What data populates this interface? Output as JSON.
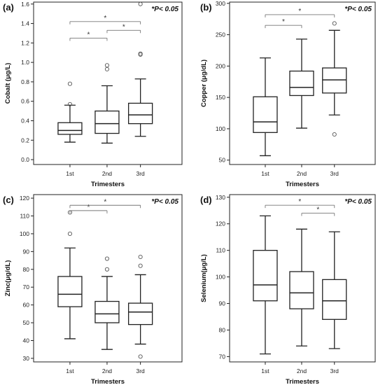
{
  "chart_data": [
    {
      "type": "box",
      "panel_label": "(a)",
      "significance_note": "*P< 0.05",
      "xlabel": "Trimesters",
      "ylabel": "Cobalt (μg/L)",
      "categories": [
        "1st",
        "2nd",
        "3rd"
      ],
      "ylim": [
        -0.05,
        1.62
      ],
      "yticks": [
        0.0,
        0.2,
        0.4,
        0.6,
        0.8,
        1.0,
        1.2,
        1.4,
        1.6
      ],
      "tick_format": "1dp",
      "boxes": [
        {
          "whisker_low": 0.18,
          "q1": 0.26,
          "median": 0.3,
          "q3": 0.38,
          "whisker_high": 0.56,
          "outliers": [
            0.57,
            0.78
          ]
        },
        {
          "whisker_low": 0.17,
          "q1": 0.27,
          "median": 0.37,
          "q3": 0.5,
          "whisker_high": 0.76,
          "outliers": [
            0.93,
            0.97
          ]
        },
        {
          "whisker_low": 0.24,
          "q1": 0.37,
          "median": 0.46,
          "q3": 0.58,
          "whisker_high": 0.83,
          "outliers": [
            1.08,
            1.09,
            1.6
          ]
        }
      ],
      "significance": [
        {
          "from": 0,
          "to": 1,
          "y": 1.25,
          "label": "*"
        },
        {
          "from": 1,
          "to": 2,
          "y": 1.33,
          "label": "*"
        },
        {
          "from": 0,
          "to": 2,
          "y": 1.42,
          "label": "*"
        }
      ]
    },
    {
      "type": "box",
      "panel_label": "(b)",
      "significance_note": "*P< 0.05",
      "xlabel": "Trimesters",
      "ylabel": "Copper (μg/dL)",
      "categories": [
        "1st",
        "2nd",
        "3rd"
      ],
      "ylim": [
        43,
        302
      ],
      "yticks": [
        50,
        100,
        150,
        200,
        250,
        300
      ],
      "tick_format": "int",
      "boxes": [
        {
          "whisker_low": 57,
          "q1": 94,
          "median": 111,
          "q3": 151,
          "whisker_high": 213,
          "outliers": []
        },
        {
          "whisker_low": 101,
          "q1": 153,
          "median": 166,
          "q3": 192,
          "whisker_high": 243,
          "outliers": []
        },
        {
          "whisker_low": 122,
          "q1": 157,
          "median": 178,
          "q3": 197,
          "whisker_high": 257,
          "outliers": [
            91,
            268
          ]
        }
      ],
      "significance": [
        {
          "from": 0,
          "to": 1,
          "y": 265,
          "label": "*"
        },
        {
          "from": 0,
          "to": 2,
          "y": 282,
          "label": "*"
        }
      ]
    },
    {
      "type": "box",
      "panel_label": "(c)",
      "significance_note": "*P< 0.05",
      "xlabel": "Trimesters",
      "ylabel": "Zinc(μg/dL)",
      "categories": [
        "1st",
        "2nd",
        "3rd"
      ],
      "ylim": [
        28,
        122
      ],
      "yticks": [
        30,
        40,
        50,
        60,
        70,
        80,
        90,
        100,
        110,
        120
      ],
      "tick_format": "int",
      "boxes": [
        {
          "whisker_low": 41,
          "q1": 59,
          "median": 66,
          "q3": 76,
          "whisker_high": 92,
          "outliers": [
            100,
            112
          ]
        },
        {
          "whisker_low": 35,
          "q1": 50,
          "median": 55,
          "q3": 62,
          "whisker_high": 76,
          "outliers": [
            80,
            86
          ]
        },
        {
          "whisker_low": 38,
          "q1": 49,
          "median": 56,
          "q3": 61,
          "whisker_high": 77,
          "outliers": [
            31,
            82,
            87
          ]
        }
      ],
      "significance": [
        {
          "from": 0,
          "to": 1,
          "y": 113,
          "label": "*"
        },
        {
          "from": 0,
          "to": 2,
          "y": 116,
          "label": "*"
        }
      ]
    },
    {
      "type": "box",
      "panel_label": "(d)",
      "significance_note": "*P< 0.05",
      "xlabel": "Trimesters",
      "ylabel": "Selenium(μg/L)",
      "categories": [
        "1st",
        "2nd",
        "3rd"
      ],
      "ylim": [
        68,
        131
      ],
      "yticks": [
        70,
        80,
        90,
        100,
        110,
        120,
        130
      ],
      "tick_format": "int",
      "boxes": [
        {
          "whisker_low": 71,
          "q1": 91,
          "median": 97,
          "q3": 110,
          "whisker_high": 123,
          "outliers": []
        },
        {
          "whisker_low": 74,
          "q1": 88,
          "median": 94,
          "q3": 102,
          "whisker_high": 118,
          "outliers": []
        },
        {
          "whisker_low": 73,
          "q1": 84,
          "median": 91,
          "q3": 99,
          "whisker_high": 117,
          "outliers": []
        }
      ],
      "significance": [
        {
          "from": 1,
          "to": 2,
          "y": 124,
          "label": "*"
        },
        {
          "from": 0,
          "to": 2,
          "y": 127,
          "label": "*"
        }
      ]
    }
  ]
}
